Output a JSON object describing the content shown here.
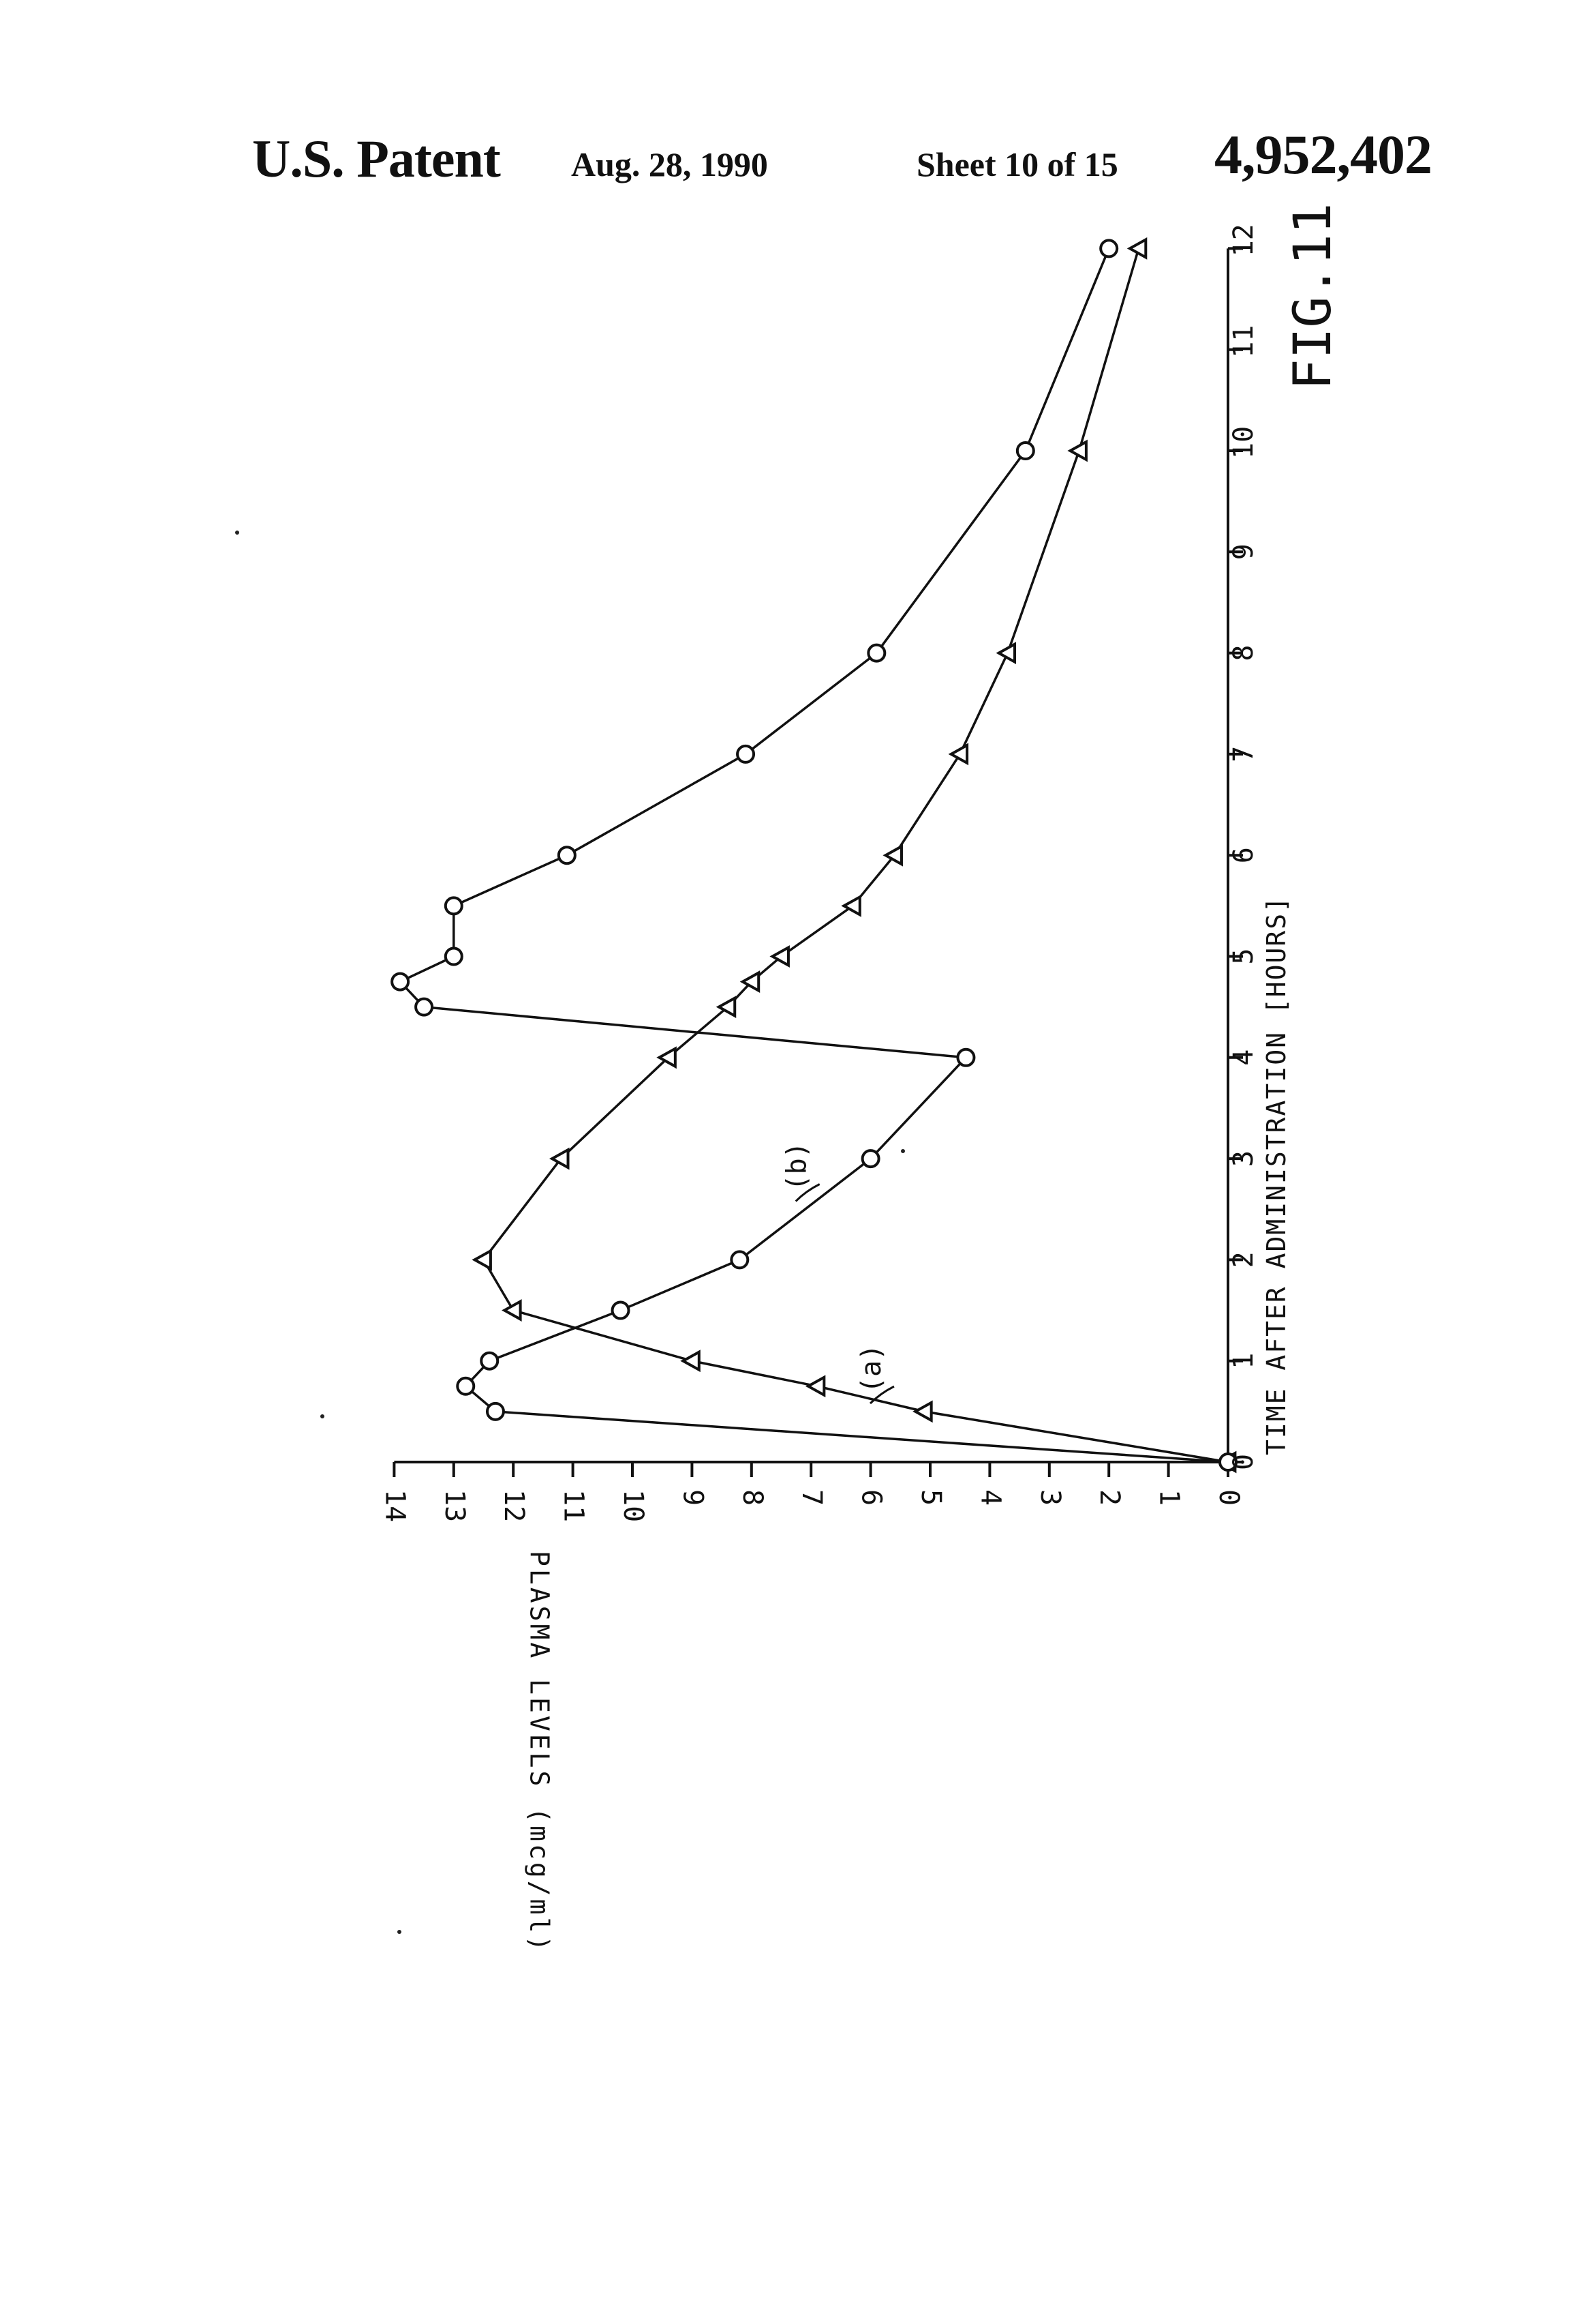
{
  "header": {
    "patent": "U.S. Patent",
    "date": "Aug. 28, 1990",
    "sheet": "Sheet 10 of 15",
    "number": "4,952,402"
  },
  "chart_data": {
    "type": "line",
    "title": "FIG.11",
    "xlabel": "TIME AFTER ADMINISTRATION [HOURS]",
    "ylabel": "PLASMA LEVELS (mcg/ml)",
    "xlim": [
      0,
      12
    ],
    "ylim": [
      0,
      14
    ],
    "x_ticks": [
      "0",
      "1",
      "2",
      "3",
      "4",
      "5",
      "6",
      "7",
      "8",
      "9",
      "10",
      "11",
      "12"
    ],
    "y_ticks": [
      "0",
      "1",
      "2",
      "3",
      "4",
      "5",
      "6",
      "7",
      "8",
      "9",
      "10",
      "11",
      "12",
      "13",
      "14"
    ],
    "grid": false,
    "orientation": "rotated 90° counter-clockwise on page",
    "series": [
      {
        "name": "(a)",
        "marker": "triangle",
        "x": [
          0,
          0.5,
          0.75,
          1,
          1.5,
          2,
          3,
          4,
          4.5,
          4.75,
          5,
          5.5,
          6,
          7,
          8,
          10,
          12
        ],
        "y": [
          0,
          5.1,
          6.9,
          9.0,
          12.0,
          12.5,
          11.2,
          9.4,
          8.4,
          8.0,
          7.5,
          6.3,
          5.6,
          4.5,
          3.7,
          2.5,
          1.5
        ]
      },
      {
        "name": "(b)",
        "marker": "circle",
        "x": [
          0,
          0.5,
          0.75,
          1,
          1.5,
          2,
          3,
          4,
          4.5,
          4.75,
          5,
          5.5,
          6,
          7,
          8,
          10,
          12
        ],
        "y": [
          0,
          12.3,
          12.8,
          12.4,
          10.2,
          8.2,
          6.0,
          4.4,
          13.5,
          13.9,
          13.0,
          13.0,
          11.1,
          8.1,
          5.9,
          3.4,
          2.0
        ]
      }
    ]
  }
}
